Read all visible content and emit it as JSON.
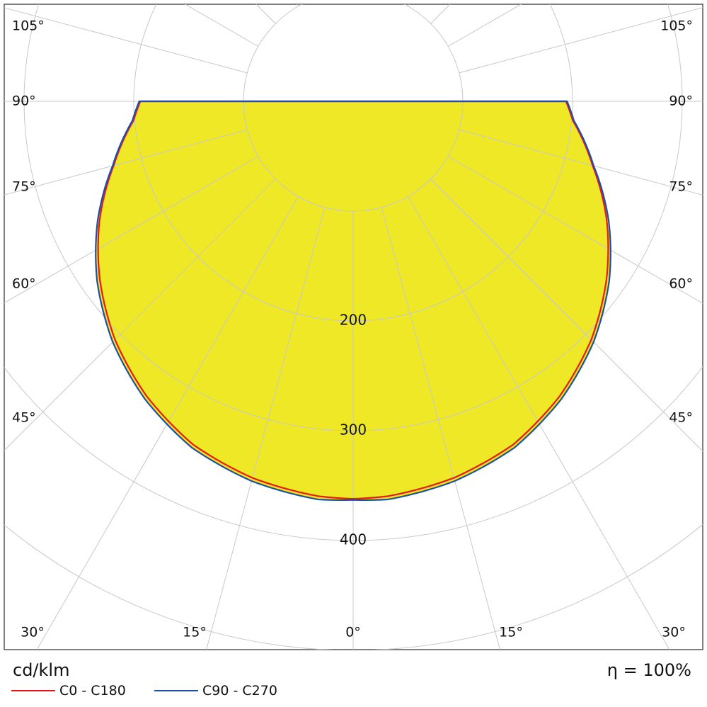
{
  "chart_data": {
    "type": "polar",
    "unit_label": "cd/klm",
    "efficiency_label": "η = 100%",
    "ring_values": [
      100,
      200,
      300,
      400,
      500
    ],
    "ring_labels": [
      {
        "value": 200,
        "text": "200"
      },
      {
        "value": 300,
        "text": "300"
      },
      {
        "value": 400,
        "text": "400"
      }
    ],
    "angle_labels": [
      {
        "angle": 105,
        "text": "105°"
      },
      {
        "angle": 90,
        "text": "90°"
      },
      {
        "angle": 75,
        "text": "75°"
      },
      {
        "angle": 60,
        "text": "60°"
      },
      {
        "angle": 45,
        "text": "45°"
      },
      {
        "angle": 30,
        "text": "30°"
      },
      {
        "angle": 15,
        "text": "15°"
      },
      {
        "angle": 0,
        "text": "0°"
      }
    ],
    "grid_angles_step": 15,
    "series": [
      {
        "name": "C0 - C180",
        "color": "#e8191c",
        "angles": [
          0,
          5,
          15,
          25,
          35,
          45,
          55,
          65,
          75,
          85,
          90
        ],
        "values": [
          362,
          361,
          355,
          345,
          328,
          307,
          282,
          255,
          226,
          201,
          194
        ]
      },
      {
        "name": "C90 - C270",
        "color": "#1d4fa8",
        "angles": [
          0,
          5,
          15,
          25,
          35,
          45,
          55,
          65,
          75,
          85,
          90
        ],
        "values": [
          363,
          364,
          358,
          348,
          331,
          310,
          285,
          257,
          227,
          202,
          195
        ]
      }
    ],
    "fill_color": "#eee827",
    "grid": true
  }
}
